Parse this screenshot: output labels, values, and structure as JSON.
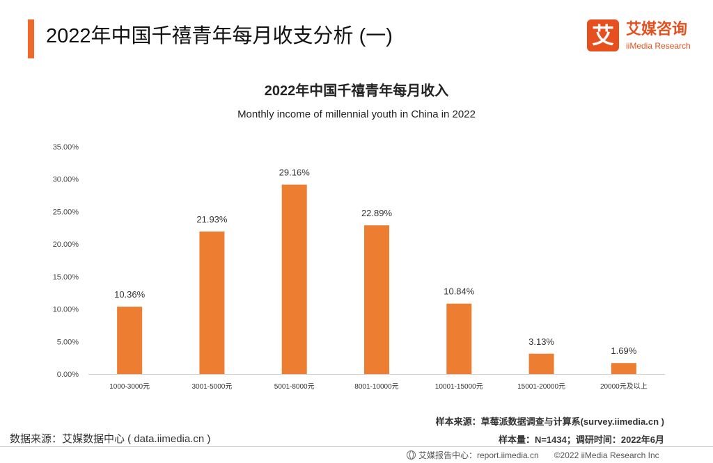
{
  "header": {
    "title": "2022年中国千禧青年每月收支分析 (一)",
    "accent_color": "#ED6A2C"
  },
  "logo": {
    "mark": "艾",
    "name_cn": "艾媒咨询",
    "name_en": "iiMedia Research",
    "color": "#E5501E"
  },
  "chart_data": {
    "type": "bar",
    "title": "2022年中国千禧青年每月收入",
    "subtitle": "Monthly income of millennial youth in China in 2022",
    "categories": [
      "1000-3000元",
      "3001-5000元",
      "5001-8000元",
      "8001-10000元",
      "10001-15000元",
      "15001-20000元",
      "20000元及以上"
    ],
    "values": [
      10.36,
      21.93,
      29.16,
      22.89,
      10.84,
      3.13,
      1.69
    ],
    "data_labels": [
      "10.36%",
      "21.93%",
      "29.16%",
      "22.89%",
      "10.84%",
      "3.13%",
      "1.69%"
    ],
    "ylim": [
      0,
      35
    ],
    "yticks": [
      0,
      5,
      10,
      15,
      20,
      25,
      30,
      35
    ],
    "ytick_labels": [
      "0.00%",
      "5.00%",
      "10.00%",
      "15.00%",
      "20.00%",
      "25.00%",
      "30.00%",
      "35.00%"
    ],
    "xlabel": "",
    "ylabel": "",
    "grid": false,
    "bar_color": "#ED7D31"
  },
  "footer": {
    "data_source": "数据来源：艾媒数据中心 ( data.iimedia.cn )",
    "sample_source": "样本来源：草莓派数据调查与计算系(survey.iimedia.cn )",
    "sample_size": "样本量：N=1434；调研时间：2022年6月",
    "report_center": "艾媒报告中心：report.iimedia.cn",
    "copyright": "©2022  iiMedia Research Inc"
  }
}
